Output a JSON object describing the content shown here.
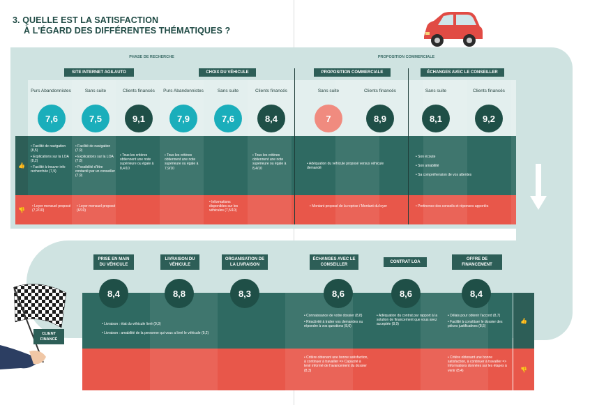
{
  "title": [
    "3. QUELLE EST LA SATISFACTION",
    "À L'ÉGARD DES DIFFÉRENTES THÉMATIQUES ?"
  ],
  "phases": {
    "left": "PHASE DE RECHERCHE",
    "right": "PROPOSITION COMMERCIALE"
  },
  "top_groups": [
    {
      "label": "SITE INTERNET AGILAUTO"
    },
    {
      "label": "CHOIX DU VÉHICULE"
    },
    {
      "label": "PROPOSITION COMMERCIALE"
    },
    {
      "label": "ÉCHANGES AVEC LE CONSEILLER"
    }
  ],
  "top_columns": [
    {
      "label": "Purs Abandonnistes",
      "value": "7,6",
      "color": "teal",
      "positive": [
        "Facilité de navigation (8,5)",
        "Explications sur la LOA (8,2)",
        "Facilité à trouver info recherchée (7,9)"
      ],
      "negative": [
        "Loyer mensuel proposé (7,2/10)"
      ]
    },
    {
      "label": "Sans suite",
      "value": "7,5",
      "color": "teal",
      "positive": [
        "Facilité de navigation (7,9)",
        "Explications sur la LOA (7,8)",
        "Possibilité d'être contacté par un conseiller (7,9)"
      ],
      "negative": [
        "Loyer mensuel proposé (6/10)"
      ]
    },
    {
      "label": "Clients financés",
      "value": "9,1",
      "color": "dark",
      "positive": [
        "Tous les critères obtiennent une note supérieure ou égale à 8,4/10"
      ],
      "negative": []
    },
    {
      "label": "Purs Abandonnistes",
      "value": "7,9",
      "color": "teal",
      "positive": [
        "Tous les critères obtiennent une note supérieure ou égale à 7,9/10"
      ],
      "negative": []
    },
    {
      "label": "Sans suite",
      "value": "7,6",
      "color": "teal",
      "positive": [],
      "negative": [
        "Informations disponibles sur les véhicules (7,5/10)"
      ]
    },
    {
      "label": "Clients financés",
      "value": "8,4",
      "color": "dark",
      "positive": [
        "Tous les critères obtiennent une note supérieure ou égale à 8,4/10"
      ],
      "negative": []
    },
    {
      "label": "Sans suite",
      "value": "7",
      "color": "pink"
    },
    {
      "label": "Clients financés",
      "value": "8,9",
      "color": "dark"
    },
    {
      "label": "Sans suite",
      "value": "8,1",
      "color": "dark"
    },
    {
      "label": "Clients financés",
      "value": "9,2",
      "color": "dark"
    }
  ],
  "proposition_positive": [
    "Adéquation du véhicule proposé versus véhicule demandé"
  ],
  "proposition_negative": [
    "Montant proposé de la reprise / Montant du loyer"
  ],
  "echanges_positive": [
    "Son écoute",
    "Son amabilité",
    "Sa compréhension de vos attentes"
  ],
  "echanges_negative": [
    "Pertinence des conseils et réponses apportés"
  ],
  "bottom_groups": [
    {
      "label": "PRISE EN MAIN DU VÉHICULE",
      "value": "8,4"
    },
    {
      "label": "LIVRAISON DU VÉHICULE",
      "value": "8,8"
    },
    {
      "label": "ORGANISATION DE LA LIVRAISON",
      "value": "8,3"
    },
    {
      "label": "ÉCHANGES AVEC LE CONSEILLER",
      "value": "8,6"
    },
    {
      "label": "CONTRAT LOA",
      "value": "8,6"
    },
    {
      "label": "OFFRE DE FINANCEMENT",
      "value": "8,4"
    }
  ],
  "livraison_positive": [
    "Livraison : état du véhicule livré (9,3)",
    "Livraison : amabilité de la personne qui vous a livré le véhicule (9,2)"
  ],
  "bottom_echanges_positive": [
    "Connaissance de votre dossier (8,8)",
    "Réactivité à traiter vos demandes ou répondre à vos questions (8,6)"
  ],
  "bottom_echanges_negative": [
    "Critère obtenant une bonne satisfaction, à continuer à travailler => Capacité à tenir informé de l'avancement du dossier (8,3)"
  ],
  "contrat_positive": [
    "Adéquation du contrat par rapport à la solution de financement que vous avez acceptée (8,9)"
  ],
  "offre_positive": [
    "Délais pour obtenir l'accord (8,7)",
    "Facilité à constituer le dossier des pièces justificatives (8,5)"
  ],
  "offre_negative": [
    "Critère obtenant une bonne satisfaction, à continuer à travailler => Informations données sur les étapes à venir (8,4)"
  ],
  "client_badge": "CLIENT FINANCÉ",
  "colors": {
    "teal": "#1aaebb",
    "dark": "#1f4f47",
    "pink": "#f08b7f",
    "negative": "#e8574a",
    "positive": "#2f6a62"
  },
  "icons": {
    "positive": "thumbs-up-icon",
    "negative": "thumbs-down-icon",
    "car": "car-icon",
    "flag": "checkered-flag-icon",
    "arrow": "down-arrow-icon"
  }
}
